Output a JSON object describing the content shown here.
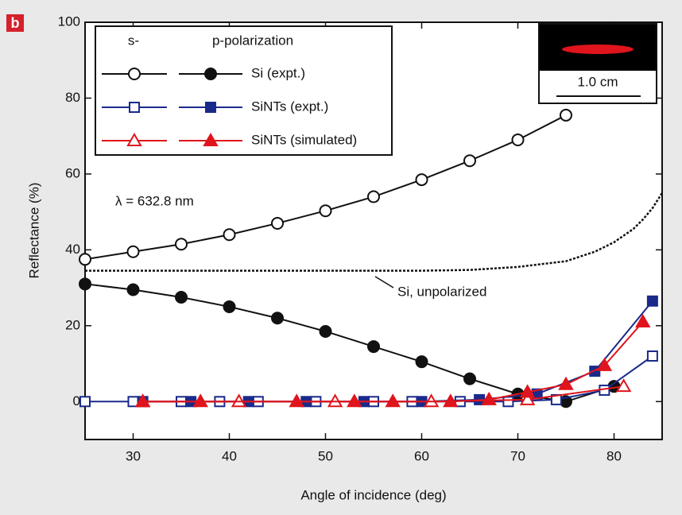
{
  "chart_data": {
    "type": "line",
    "panel_label": "b",
    "xlabel": "Angle of incidence (deg)",
    "ylabel": "Reflectance (%)",
    "xlim": [
      25,
      85
    ],
    "ylim": [
      -10,
      100
    ],
    "xticks": [
      30,
      40,
      50,
      60,
      70,
      80
    ],
    "yticks": [
      0,
      20,
      40,
      60,
      80,
      100
    ],
    "legend": {
      "headers": [
        "s-",
        "p-polarization"
      ],
      "entries": [
        "Si (expt.)",
        "SiNTs (expt.)",
        "SiNTs (simulated)"
      ]
    },
    "annotations": [
      "λ = 632.8 nm",
      "Si, unpolarized"
    ],
    "inset_label": "1.0 cm",
    "series": [
      {
        "entry": 0,
        "color": "#111111",
        "marker": "circle",
        "filled": false,
        "x": [
          25,
          30,
          35,
          40,
          45,
          50,
          55,
          60,
          65,
          70,
          75
        ],
        "values": [
          37.5,
          39.5,
          41.5,
          44,
          47,
          50.3,
          54,
          58.5,
          63.5,
          69,
          75.5
        ]
      },
      {
        "entry": 0,
        "color": "#111111",
        "marker": "circle",
        "filled": true,
        "x": [
          25,
          30,
          35,
          40,
          45,
          50,
          55,
          60,
          65,
          70,
          75,
          80
        ],
        "values": [
          31,
          29.5,
          27.5,
          25,
          22,
          18.5,
          14.5,
          10.5,
          6,
          2,
          0,
          4
        ]
      },
      {
        "entry": 1,
        "color": "#1a2a8a",
        "marker": "square",
        "filled": false,
        "x": [
          25,
          30,
          35,
          39,
          43,
          49,
          55,
          59,
          64,
          69,
          74,
          79,
          84
        ],
        "values": [
          0,
          0,
          0,
          0,
          0,
          0,
          0,
          0,
          0,
          0,
          0.5,
          3,
          12
        ]
      },
      {
        "entry": 1,
        "color": "#1a2a8a",
        "marker": "square",
        "filled": true,
        "x": [
          31,
          36,
          42,
          48,
          54,
          60,
          66,
          72,
          78,
          84
        ],
        "values": [
          0,
          0,
          0,
          0,
          0,
          0,
          0.5,
          2,
          8,
          26.5
        ]
      },
      {
        "entry": 2,
        "color": "#e0141c",
        "marker": "triangle",
        "filled": false,
        "x": [
          31,
          41,
          51,
          61,
          71,
          81
        ],
        "values": [
          0,
          0,
          0,
          0,
          0.5,
          4
        ]
      },
      {
        "entry": 2,
        "color": "#e0141c",
        "marker": "triangle",
        "filled": true,
        "x": [
          31,
          37,
          47,
          53,
          57,
          63,
          67,
          71,
          75,
          79,
          83
        ],
        "values": [
          0,
          0,
          0,
          0,
          0,
          0,
          0.5,
          2.5,
          4.5,
          9.5,
          21
        ]
      },
      {
        "color": "#111111",
        "dashed": true,
        "x": [
          25,
          40,
          60,
          65,
          70,
          75,
          78,
          80,
          82,
          83,
          84,
          85
        ],
        "values": [
          34.5,
          34.5,
          34.5,
          34.7,
          35.5,
          37,
          39.5,
          42,
          45.5,
          48,
          51,
          55
        ]
      }
    ]
  }
}
